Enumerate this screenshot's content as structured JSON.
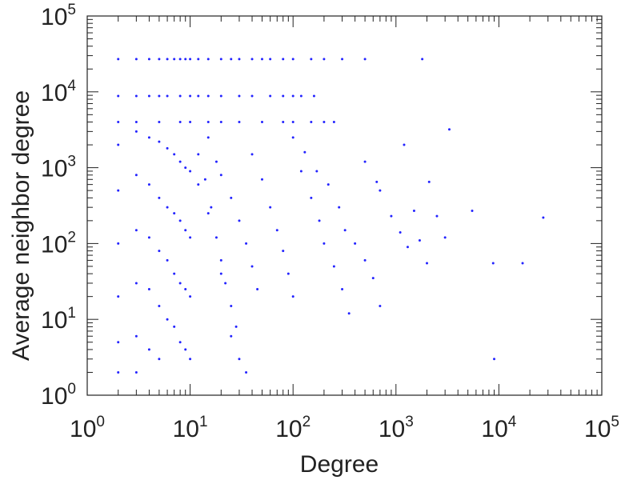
{
  "chart_data": {
    "type": "scatter",
    "title": "",
    "xlabel": "Degree",
    "ylabel": "Average neighbor degree",
    "xscale": "log",
    "yscale": "log",
    "xlim": [
      1,
      100000
    ],
    "ylim": [
      1,
      100000
    ],
    "x_ticks": [
      {
        "base": "10",
        "exp": "0"
      },
      {
        "base": "10",
        "exp": "1"
      },
      {
        "base": "10",
        "exp": "2"
      },
      {
        "base": "10",
        "exp": "3"
      },
      {
        "base": "10",
        "exp": "4"
      },
      {
        "base": "10",
        "exp": "5"
      }
    ],
    "y_ticks": [
      {
        "base": "10",
        "exp": "0"
      },
      {
        "base": "10",
        "exp": "1"
      },
      {
        "base": "10",
        "exp": "2"
      },
      {
        "base": "10",
        "exp": "3"
      },
      {
        "base": "10",
        "exp": "4"
      },
      {
        "base": "10",
        "exp": "5"
      }
    ],
    "grid": false,
    "legend": "none",
    "marker_color": "#2323ff",
    "series": [
      {
        "points": [
          [
            2,
            27000
          ],
          [
            3,
            27000
          ],
          [
            4,
            27000
          ],
          [
            5,
            27000
          ],
          [
            6,
            27000
          ],
          [
            7,
            27000
          ],
          [
            8,
            27000
          ],
          [
            9,
            27000
          ],
          [
            10,
            27000
          ],
          [
            12,
            27000
          ],
          [
            15,
            27000
          ],
          [
            20,
            27000
          ],
          [
            25,
            27000
          ],
          [
            30,
            27000
          ],
          [
            40,
            27000
          ],
          [
            50,
            27000
          ],
          [
            60,
            27000
          ],
          [
            80,
            27000
          ],
          [
            100,
            27000
          ],
          [
            150,
            27000
          ],
          [
            200,
            27000
          ],
          [
            300,
            27000
          ],
          [
            500,
            27000
          ],
          [
            1800,
            27000
          ],
          [
            2,
            8800
          ],
          [
            3,
            8800
          ],
          [
            4,
            8800
          ],
          [
            5,
            8800
          ],
          [
            6,
            8800
          ],
          [
            8,
            8800
          ],
          [
            10,
            8800
          ],
          [
            12,
            8800
          ],
          [
            15,
            8800
          ],
          [
            20,
            8800
          ],
          [
            30,
            8800
          ],
          [
            40,
            8800
          ],
          [
            60,
            8800
          ],
          [
            80,
            8800
          ],
          [
            100,
            8800
          ],
          [
            120,
            8800
          ],
          [
            160,
            8800
          ],
          [
            2,
            4000
          ],
          [
            3,
            4000
          ],
          [
            5,
            4000
          ],
          [
            8,
            4000
          ],
          [
            10,
            4000
          ],
          [
            15,
            4000
          ],
          [
            20,
            4000
          ],
          [
            30,
            4000
          ],
          [
            50,
            4000
          ],
          [
            80,
            4000
          ],
          [
            100,
            4000
          ],
          [
            150,
            4000
          ],
          [
            200,
            4000
          ],
          [
            250,
            4000
          ],
          [
            2,
            2000
          ],
          [
            2,
            500
          ],
          [
            2,
            100
          ],
          [
            2,
            20
          ],
          [
            2,
            5
          ],
          [
            2,
            2
          ],
          [
            3,
            3000
          ],
          [
            3,
            800
          ],
          [
            3,
            150
          ],
          [
            3,
            30
          ],
          [
            3,
            6
          ],
          [
            3,
            2
          ],
          [
            4,
            2500
          ],
          [
            4,
            600
          ],
          [
            4,
            120
          ],
          [
            4,
            25
          ],
          [
            4,
            4
          ],
          [
            5,
            2200
          ],
          [
            5,
            400
          ],
          [
            5,
            80
          ],
          [
            5,
            15
          ],
          [
            5,
            3
          ],
          [
            6,
            1800
          ],
          [
            6,
            300
          ],
          [
            6,
            60
          ],
          [
            6,
            10
          ],
          [
            7,
            1500
          ],
          [
            7,
            250
          ],
          [
            7,
            40
          ],
          [
            7,
            8
          ],
          [
            8,
            1200
          ],
          [
            8,
            200
          ],
          [
            8,
            30
          ],
          [
            8,
            5
          ],
          [
            9,
            1000
          ],
          [
            9,
            150
          ],
          [
            9,
            25
          ],
          [
            9,
            4
          ],
          [
            10,
            900
          ],
          [
            10,
            120
          ],
          [
            10,
            20
          ],
          [
            10,
            3
          ],
          [
            12,
            1500
          ],
          [
            14,
            700
          ],
          [
            16,
            300
          ],
          [
            18,
            120
          ],
          [
            20,
            60
          ],
          [
            22,
            30
          ],
          [
            25,
            15
          ],
          [
            28,
            8
          ],
          [
            15,
            2500
          ],
          [
            18,
            1200
          ],
          [
            20,
            800
          ],
          [
            25,
            400
          ],
          [
            30,
            200
          ],
          [
            35,
            100
          ],
          [
            40,
            50
          ],
          [
            45,
            25
          ],
          [
            12,
            600
          ],
          [
            15,
            250
          ],
          [
            20,
            40
          ],
          [
            25,
            6
          ],
          [
            30,
            3
          ],
          [
            35,
            2
          ],
          [
            40,
            1500
          ],
          [
            50,
            700
          ],
          [
            60,
            300
          ],
          [
            70,
            150
          ],
          [
            80,
            80
          ],
          [
            90,
            40
          ],
          [
            100,
            20
          ],
          [
            120,
            900
          ],
          [
            150,
            400
          ],
          [
            180,
            200
          ],
          [
            200,
            100
          ],
          [
            250,
            50
          ],
          [
            300,
            25
          ],
          [
            350,
            12
          ],
          [
            100,
            2500
          ],
          [
            130,
            1600
          ],
          [
            170,
            900
          ],
          [
            220,
            600
          ],
          [
            280,
            300
          ],
          [
            320,
            150
          ],
          [
            400,
            100
          ],
          [
            500,
            60
          ],
          [
            600,
            35
          ],
          [
            700,
            15
          ],
          [
            500,
            1200
          ],
          [
            650,
            650
          ],
          [
            700,
            500
          ],
          [
            900,
            230
          ],
          [
            1100,
            140
          ],
          [
            1300,
            90
          ],
          [
            1500,
            270
          ],
          [
            1700,
            110
          ],
          [
            2000,
            55
          ],
          [
            2500,
            230
          ],
          [
            3000,
            120
          ],
          [
            1200,
            2000
          ],
          [
            2100,
            650
          ],
          [
            3300,
            3200
          ],
          [
            5500,
            270
          ],
          [
            8800,
            55
          ],
          [
            9000,
            3
          ],
          [
            17000,
            55
          ],
          [
            27000,
            220
          ]
        ]
      }
    ]
  }
}
